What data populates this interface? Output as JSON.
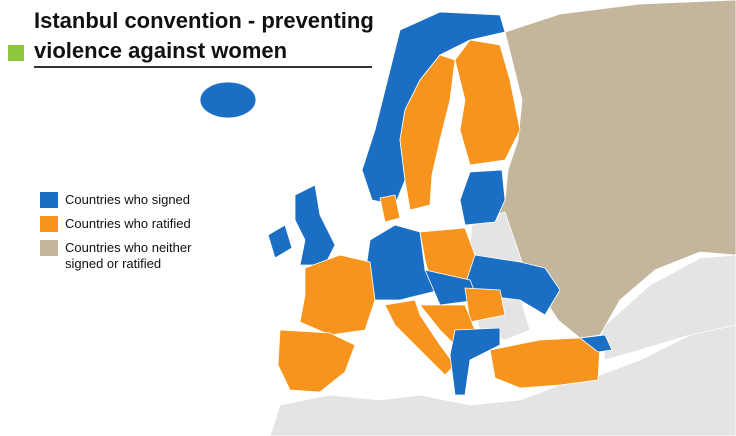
{
  "title": {
    "line1": "Istanbul convention - preventing",
    "line2": "violence against women"
  },
  "legend": [
    {
      "label": "Countries who signed",
      "color": "#1a6fc4"
    },
    {
      "label": "Countries who ratified",
      "color": "#f7941d"
    },
    {
      "label": "Countries who neither signed or ratified",
      "color": "#c3b69c"
    }
  ]
}
